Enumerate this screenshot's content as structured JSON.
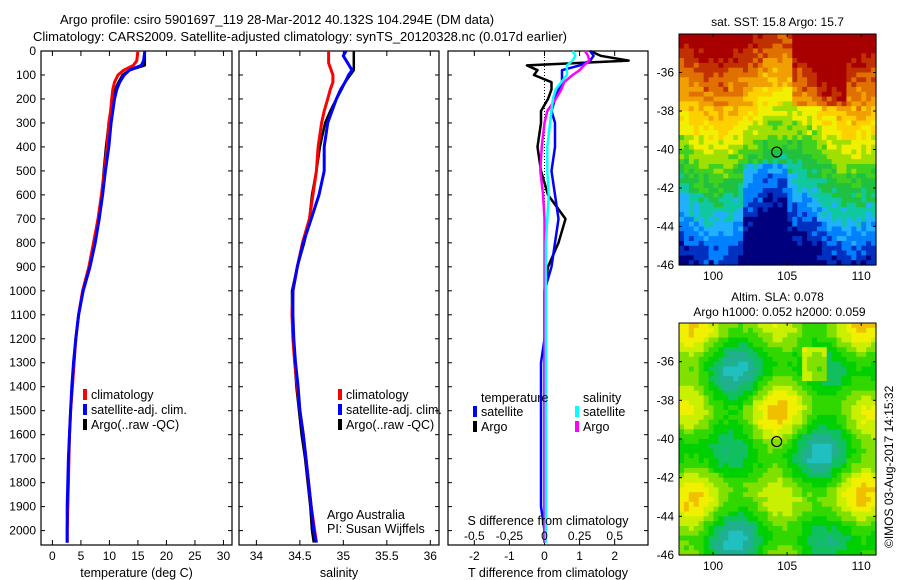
{
  "header": {
    "line1": "Argo profile: csiro 5901697_119 28-Mar-2012 40.132S 104.294E (DM data)",
    "line2": "Climatology: CARS2009. Satellite-adjusted climatology: synTS_20120328.nc (0.017d earlier)"
  },
  "colors": {
    "climatology": "#ff0000",
    "satellite_adj": "#0000ff",
    "argo": "#000000",
    "s_satellite": "#00ffff",
    "s_argo": "#ff00ff"
  },
  "depth_axis": {
    "ylim": [
      0,
      2060
    ],
    "ticks": [
      0,
      100,
      200,
      300,
      400,
      500,
      600,
      700,
      800,
      900,
      1000,
      1100,
      1200,
      1300,
      1400,
      1500,
      1600,
      1700,
      1800,
      1900,
      2000
    ]
  },
  "chart_data": [
    {
      "type": "line",
      "id": "temperature",
      "xlabel": "temperature (deg C)",
      "ylabel": "",
      "xlim": [
        -2,
        31.5
      ],
      "ylim": [
        0,
        2060
      ],
      "xticks": [
        0,
        5,
        10,
        15,
        20,
        25,
        30
      ],
      "legend": [
        "climatology",
        "satellite-adj. clim.",
        "Argo(..raw -QC)"
      ],
      "legend_position": "lower-middle",
      "depth": [
        0,
        40,
        60,
        80,
        100,
        130,
        160,
        200,
        250,
        300,
        400,
        500,
        600,
        700,
        800,
        900,
        1000,
        1100,
        1200,
        1300,
        1400,
        1500,
        1600,
        1700,
        1800,
        1900,
        2000,
        2050
      ],
      "series": [
        {
          "name": "climatology",
          "values": [
            15.0,
            14.8,
            14.2,
            12.5,
            11.5,
            10.9,
            10.6,
            10.4,
            10.2,
            9.9,
            9.6,
            9.1,
            8.6,
            8.0,
            7.2,
            6.4,
            5.3,
            4.6,
            4.1,
            3.8,
            3.5,
            3.2,
            3.0,
            2.9,
            2.8,
            2.7,
            2.6,
            2.6
          ]
        },
        {
          "name": "satellite-adj. clim.",
          "values": [
            16.2,
            16.0,
            15.6,
            13.5,
            12.6,
            11.8,
            11.3,
            10.9,
            10.6,
            10.3,
            9.9,
            9.3,
            8.8,
            8.2,
            7.5,
            6.6,
            5.4,
            4.6,
            4.1,
            3.7,
            3.4,
            3.2,
            3.0,
            2.8,
            2.7,
            2.6,
            2.6,
            2.6
          ]
        },
        {
          "name": "Argo(..raw -QC)",
          "values": [
            16.2,
            16.2,
            16.2,
            13.5,
            12.3,
            11.6,
            11.0,
            10.6,
            10.3,
            9.9,
            9.4,
            9.0,
            8.7,
            8.2,
            7.5,
            6.6,
            5.3,
            4.6,
            4.1,
            3.8,
            3.5,
            3.2,
            3.0,
            2.9,
            2.8,
            2.7,
            2.6,
            2.6
          ]
        }
      ]
    },
    {
      "type": "line",
      "id": "salinity",
      "xlabel": "salinity",
      "ylabel": "",
      "xlim": [
        33.8,
        36.1
      ],
      "ylim": [
        0,
        2060
      ],
      "xticks": [
        34,
        34.5,
        35,
        35.5,
        36
      ],
      "legend": [
        "climatology",
        "satellite-adj. clim.",
        "Argo(..raw -QC)"
      ],
      "legend_position": "lower-right",
      "annotation": [
        "Argo Australia",
        "PI: Susan Wijffels"
      ],
      "depth": [
        0,
        20,
        50,
        80,
        100,
        130,
        160,
        200,
        250,
        300,
        400,
        500,
        600,
        700,
        800,
        900,
        1000,
        1100,
        1200,
        1300,
        1400,
        1500,
        1600,
        1700,
        1800,
        1900,
        2000,
        2050
      ],
      "series": [
        {
          "name": "climatology",
          "values": [
            34.83,
            34.83,
            34.83,
            34.86,
            34.88,
            34.88,
            34.85,
            34.82,
            34.78,
            34.75,
            34.71,
            34.69,
            34.65,
            34.61,
            34.53,
            34.47,
            34.42,
            34.41,
            34.42,
            34.44,
            34.47,
            34.5,
            34.54,
            34.57,
            34.6,
            34.63,
            34.67,
            34.69
          ]
        },
        {
          "name": "satellite-adj. clim.",
          "values": [
            35.03,
            35.0,
            35.05,
            35.1,
            35.06,
            35.02,
            34.97,
            34.92,
            34.87,
            34.82,
            34.78,
            34.78,
            34.72,
            34.63,
            34.54,
            34.47,
            34.42,
            34.42,
            34.43,
            34.45,
            34.48,
            34.5,
            34.54,
            34.57,
            34.6,
            34.63,
            34.66,
            34.69
          ]
        },
        {
          "name": "Argo(..raw -QC)",
          "values": [
            35.12,
            35.12,
            35.12,
            35.12,
            35.08,
            35.02,
            34.98,
            34.92,
            34.85,
            34.79,
            34.73,
            34.69,
            34.64,
            34.61,
            34.55,
            34.47,
            34.41,
            34.41,
            34.42,
            34.44,
            34.46,
            34.49,
            34.52,
            34.56,
            34.59,
            34.62,
            34.64,
            34.66
          ]
        }
      ]
    },
    {
      "type": "line",
      "id": "differences",
      "xlabel": "T difference from climatology",
      "xlabel2": "S difference from climatology",
      "xlim": [
        -2.75,
        2.95
      ],
      "xlim_s": [
        -0.6875,
        0.7375
      ],
      "ylim": [
        0,
        2060
      ],
      "xticks": [
        -2,
        -1,
        0,
        1,
        2
      ],
      "xticks_s": [
        "-0.5",
        "-0.25",
        "0",
        "0.25",
        "0.5"
      ],
      "legend_temperature_title": "temperature",
      "legend_salinity_title": "salinity",
      "legend": [
        "satellite",
        "Argo",
        "satellite",
        "Argo"
      ],
      "legend_position": "lower-middle",
      "depth": [
        0,
        20,
        40,
        60,
        80,
        100,
        130,
        160,
        200,
        250,
        300,
        400,
        500,
        600,
        700,
        800,
        900,
        1000,
        1100,
        1200,
        1300,
        1400,
        1500,
        1600,
        1700,
        1800,
        1900,
        2000,
        2050
      ],
      "series": [
        {
          "name": "temperature satellite",
          "values": [
            1.3,
            1.4,
            1.3,
            1.0,
            0.5,
            0.5,
            0.5,
            0.4,
            0.3,
            0.2,
            0.3,
            0.3,
            0.2,
            0.3,
            0.4,
            0.3,
            0.2,
            0.0,
            0.0,
            0.0,
            -0.1,
            -0.1,
            -0.1,
            -0.1,
            -0.1,
            -0.1,
            -0.1,
            0.0,
            0.0
          ]
        },
        {
          "name": "temperature Argo",
          "values": [
            1.3,
            1.6,
            2.4,
            -0.5,
            -0.2,
            -0.3,
            0.2,
            0.2,
            0.1,
            -0.1,
            -0.1,
            -0.2,
            -0.1,
            0.1,
            0.6,
            0.4,
            0.1,
            0.0,
            0.0,
            0.0,
            0.0,
            0.0,
            0.0,
            0.0,
            0.0,
            0.0,
            0.0,
            0.0,
            0.0
          ]
        },
        {
          "name": "salinity satellite",
          "values": [
            0.2,
            0.22,
            0.2,
            0.16,
            0.16,
            0.16,
            0.12,
            0.08,
            0.06,
            0.05,
            0.04,
            0.02,
            0.02,
            0.03,
            0.02,
            0.01,
            0.01,
            0.01,
            0.01,
            0.01,
            0.01,
            0.01,
            0.01,
            0.01,
            0.01,
            0.01,
            0.01,
            0.01,
            0.01
          ]
        },
        {
          "name": "salinity Argo",
          "values": [
            0.29,
            0.31,
            0.32,
            0.28,
            0.25,
            0.2,
            0.14,
            0.12,
            0.08,
            0.02,
            0.0,
            -0.02,
            -0.03,
            -0.01,
            0.0,
            0.0,
            0.0,
            0.0,
            0.0,
            0.0,
            0.0,
            0.0,
            0.0,
            0.0,
            0.0,
            0.0,
            0.0,
            0.0,
            0.0
          ]
        }
      ]
    },
    {
      "type": "heatmap",
      "id": "sst-map",
      "title": "sat. SST: 15.8 Argo: 15.7",
      "xlim": [
        97.7,
        111.0
      ],
      "ylim": [
        -46,
        -34
      ],
      "xticks": [
        100,
        105,
        110
      ],
      "yticks": [
        -36,
        -38,
        -40,
        -42,
        -44,
        -46
      ],
      "marker": {
        "lon": 104.294,
        "lat": -40.132
      }
    },
    {
      "type": "heatmap",
      "id": "sla-map",
      "title": "Altim. SLA: 0.078",
      "subtitle": "Argo h1000: 0.052 h2000: 0.059",
      "xlim": [
        97.7,
        111.0
      ],
      "ylim": [
        -46,
        -34
      ],
      "xticks": [
        100,
        105,
        110
      ],
      "yticks": [
        -36,
        -38,
        -40,
        -42,
        -44,
        -46
      ],
      "marker": {
        "lon": 104.294,
        "lat": -40.132
      }
    }
  ],
  "credit": "©IMOS 03-Aug-2017 14:15:32"
}
